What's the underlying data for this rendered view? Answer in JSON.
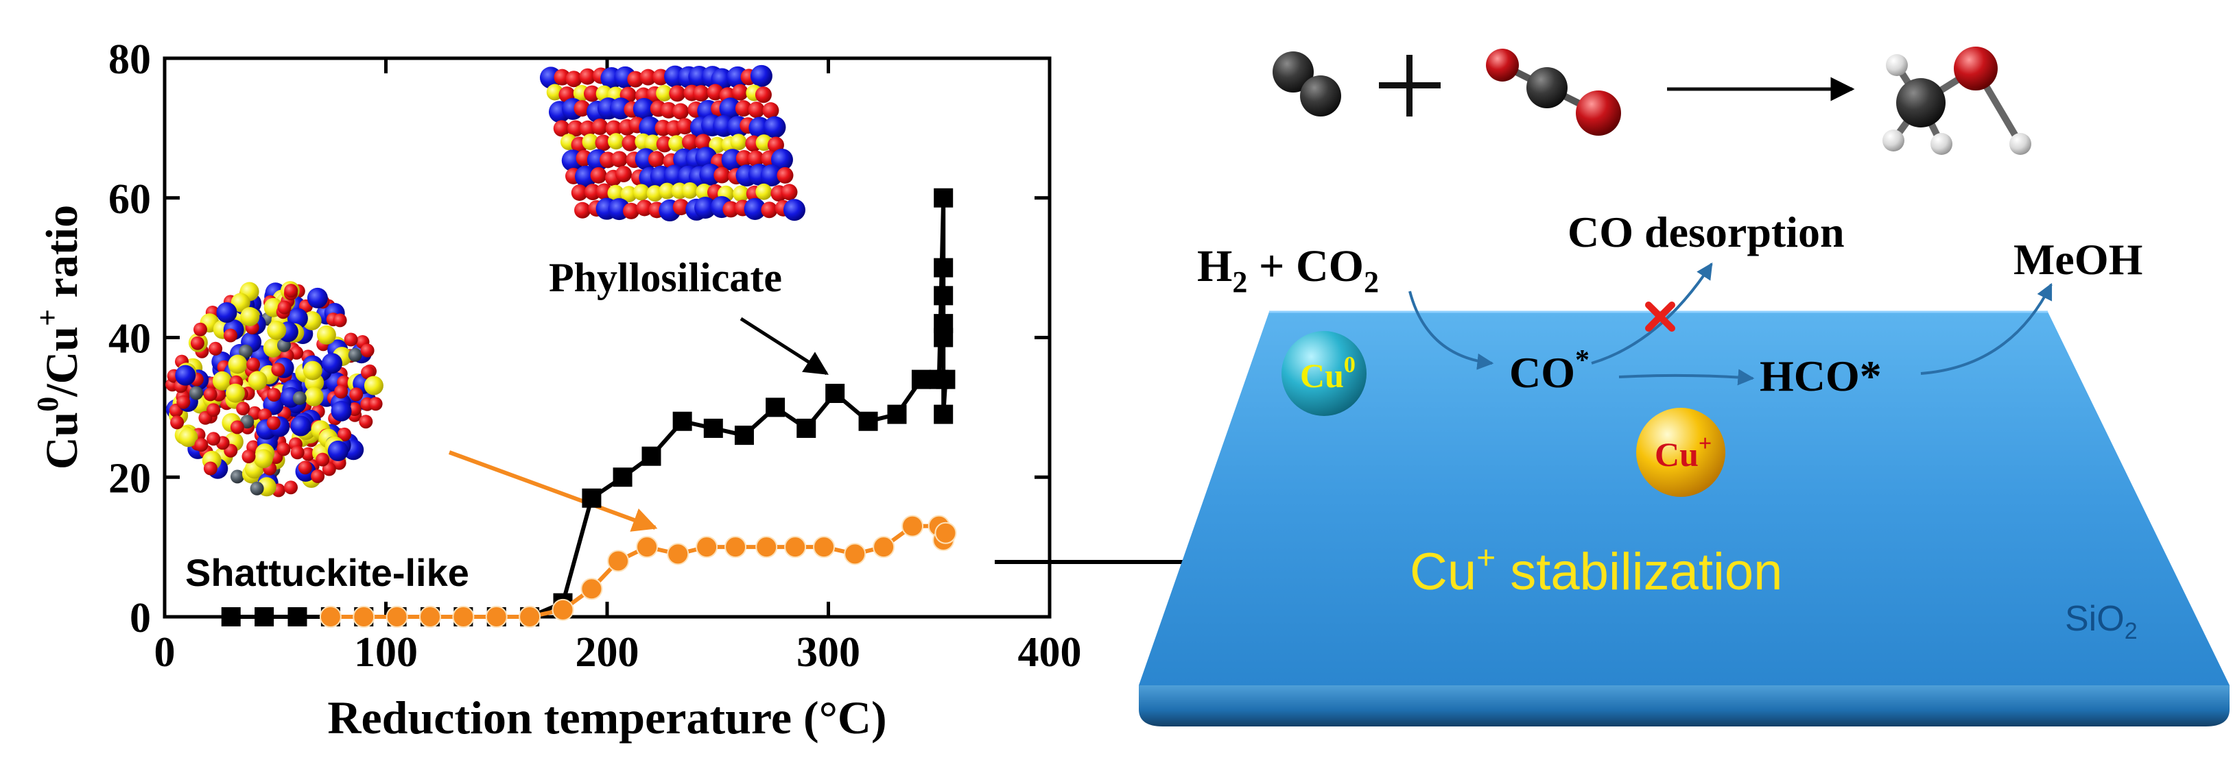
{
  "chart_data": {
    "type": "line",
    "xlabel": "Reduction temperature (°C)",
    "ylabel_parts": [
      "Cu",
      "0",
      "/Cu",
      "+",
      " ratio"
    ],
    "xlim": [
      0,
      400
    ],
    "ylim": [
      0,
      80
    ],
    "xticks": [
      0,
      100,
      200,
      300,
      400
    ],
    "yticks": [
      0,
      20,
      40,
      60,
      80
    ],
    "grid": false,
    "series": [
      {
        "color": "#000000",
        "marker": "square",
        "x": [
          30,
          45,
          60,
          75,
          90,
          105,
          120,
          135,
          150,
          165,
          180,
          193,
          207,
          220,
          234,
          248,
          262,
          276,
          290,
          303,
          318,
          331,
          342,
          350,
          352,
          352,
          352,
          352,
          352,
          352,
          353
        ],
        "y": [
          0,
          0,
          0,
          0,
          0,
          0,
          0,
          0,
          0,
          0,
          2,
          17,
          20,
          23,
          28,
          27,
          26,
          30,
          27,
          32,
          28,
          29,
          34,
          34,
          60,
          50,
          46,
          42,
          40,
          29,
          34
        ]
      },
      {
        "color": "#F58A1F",
        "marker": "circle",
        "x": [
          75,
          90,
          105,
          120,
          135,
          150,
          165,
          180,
          193,
          205,
          218,
          232,
          245,
          258,
          272,
          285,
          298,
          312,
          325,
          338,
          350,
          352,
          353
        ],
        "y": [
          0,
          0,
          0,
          0,
          0,
          0,
          0,
          1,
          4,
          8,
          10,
          9,
          10,
          10,
          10,
          10,
          10,
          9,
          10,
          13,
          13,
          11,
          12
        ]
      }
    ],
    "annotations": {
      "phyllosilicate": "Phyllosilicate",
      "shattuckite": "Shattuckite-like"
    }
  },
  "scheme": {
    "reactant_parts": [
      "H",
      "2",
      " + CO",
      "2"
    ],
    "co_desorption": "CO desorption",
    "product": "MeOH",
    "intermediate1": "CO",
    "intermediate1_sup": "*",
    "intermediate2": "HCO*",
    "cu0_parts": [
      "Cu",
      "0"
    ],
    "cuplus_parts": [
      "Cu",
      "+"
    ],
    "stabilization_parts": [
      "Cu",
      "+",
      " stabilization"
    ],
    "support_parts": [
      "SiO",
      "2"
    ]
  },
  "colors": {
    "surface_top": "#3E9AE0",
    "surface_edge": "#1F6FB0",
    "cu0_sphere": "#1F9FBF",
    "cuplus_sphere": "#F5B800",
    "stabilization_text": "#FFE419",
    "cross": "#E8201A",
    "flow_arrows": "#2A6FA8"
  }
}
